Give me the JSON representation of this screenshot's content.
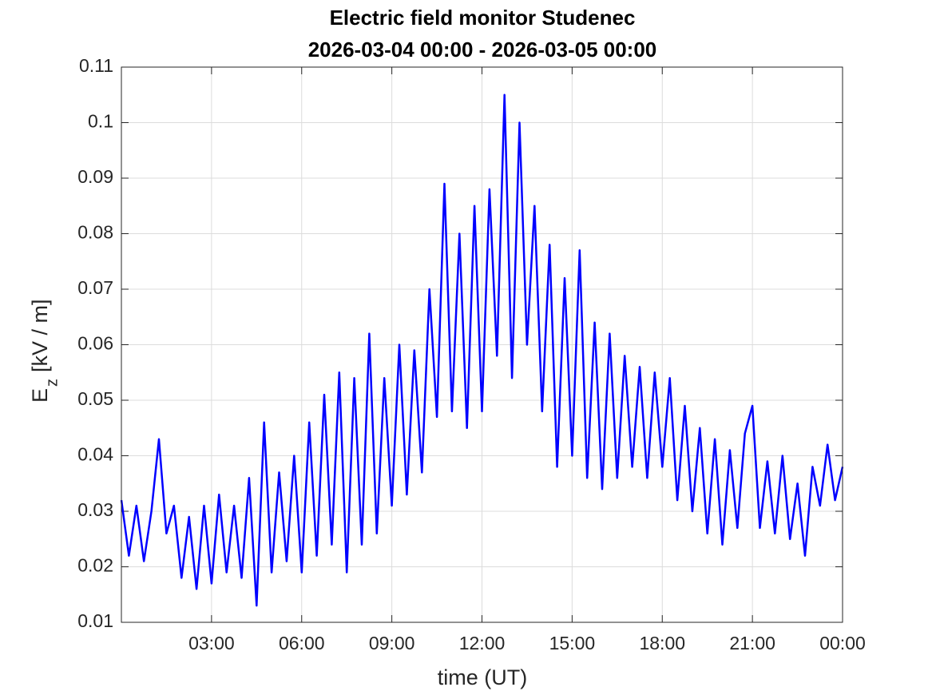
{
  "chart_data": {
    "type": "line",
    "title": [
      "Electric field monitor Studenec",
      "2026-03-04 00:00 - 2026-03-05 00:00"
    ],
    "xlabel": "time (UT)",
    "ylabel": {
      "main": "E",
      "sub": "z",
      "unit": "[kV / m]"
    },
    "x": [
      0,
      0.25,
      0.5,
      0.75,
      1,
      1.25,
      1.5,
      1.75,
      2,
      2.25,
      2.5,
      2.75,
      3,
      3.25,
      3.5,
      3.75,
      4,
      4.25,
      4.5,
      4.75,
      5,
      5.25,
      5.5,
      5.75,
      6,
      6.25,
      6.5,
      6.75,
      7,
      7.25,
      7.5,
      7.75,
      8,
      8.25,
      8.5,
      8.75,
      9,
      9.25,
      9.5,
      9.75,
      10,
      10.25,
      10.5,
      10.75,
      11,
      11.25,
      11.5,
      11.75,
      12,
      12.25,
      12.5,
      12.75,
      13,
      13.25,
      13.5,
      13.75,
      14,
      14.25,
      14.5,
      14.75,
      15,
      15.25,
      15.5,
      15.75,
      16,
      16.25,
      16.5,
      16.75,
      17,
      17.25,
      17.5,
      17.75,
      18,
      18.25,
      18.5,
      18.75,
      19,
      19.25,
      19.5,
      19.75,
      20,
      20.25,
      20.5,
      20.75,
      21,
      21.25,
      21.5,
      21.75,
      22,
      22.25,
      22.5,
      22.75,
      23,
      23.25,
      23.5,
      23.75,
      24
    ],
    "series": [
      {
        "name": "Ez",
        "color": "#0000ff",
        "values": [
          0.032,
          0.022,
          0.031,
          0.021,
          0.03,
          0.043,
          0.026,
          0.031,
          0.018,
          0.029,
          0.016,
          0.031,
          0.017,
          0.033,
          0.019,
          0.031,
          0.018,
          0.036,
          0.013,
          0.046,
          0.019,
          0.037,
          0.021,
          0.04,
          0.019,
          0.046,
          0.022,
          0.051,
          0.024,
          0.055,
          0.019,
          0.054,
          0.024,
          0.062,
          0.026,
          0.054,
          0.031,
          0.06,
          0.033,
          0.059,
          0.037,
          0.07,
          0.047,
          0.089,
          0.048,
          0.08,
          0.045,
          0.085,
          0.048,
          0.088,
          0.058,
          0.105,
          0.054,
          0.1,
          0.06,
          0.085,
          0.048,
          0.078,
          0.038,
          0.072,
          0.04,
          0.077,
          0.036,
          0.064,
          0.034,
          0.062,
          0.036,
          0.058,
          0.038,
          0.056,
          0.036,
          0.055,
          0.038,
          0.054,
          0.032,
          0.049,
          0.03,
          0.045,
          0.026,
          0.043,
          0.024,
          0.041,
          0.027,
          0.044,
          0.049,
          0.027,
          0.039,
          0.026,
          0.04,
          0.025,
          0.035,
          0.022,
          0.038,
          0.031,
          0.042,
          0.032,
          0.038
        ]
      }
    ],
    "xlim": [
      0,
      24
    ],
    "xticks": [
      {
        "value": 3,
        "label": "03:00"
      },
      {
        "value": 6,
        "label": "06:00"
      },
      {
        "value": 9,
        "label": "09:00"
      },
      {
        "value": 12,
        "label": "12:00"
      },
      {
        "value": 15,
        "label": "15:00"
      },
      {
        "value": 18,
        "label": "18:00"
      },
      {
        "value": 21,
        "label": "21:00"
      },
      {
        "value": 24,
        "label": "00:00"
      }
    ],
    "ylim": [
      0.01,
      0.11
    ],
    "yticks": [
      0.01,
      0.02,
      0.03,
      0.04,
      0.05,
      0.06,
      0.07,
      0.08,
      0.09,
      0.1,
      0.11
    ],
    "grid": true
  }
}
